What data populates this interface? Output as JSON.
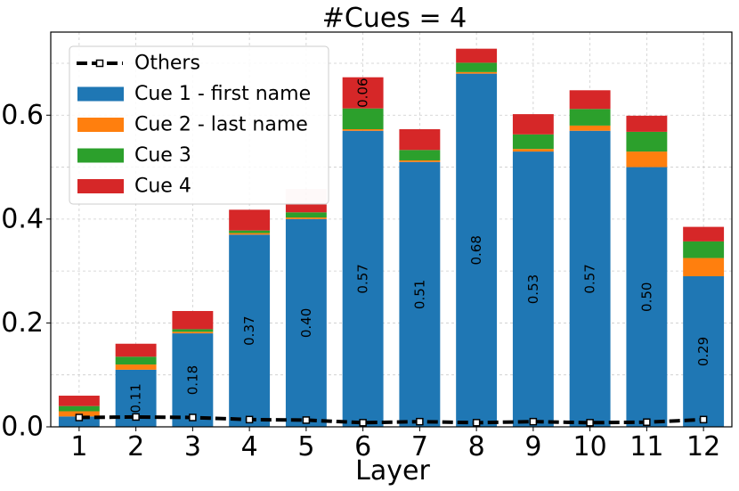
{
  "chart_data": {
    "type": "bar",
    "stacked": true,
    "title": "#Cues = 4",
    "xlabel": "Layer",
    "ylabel": "",
    "ylim": [
      0,
      0.76
    ],
    "yticks": [
      0.0,
      0.2,
      0.4,
      0.6
    ],
    "ytick_labels": [
      "0.0",
      "0.2",
      "0.4",
      "0.6"
    ],
    "categories": [
      "1",
      "2",
      "3",
      "4",
      "5",
      "6",
      "7",
      "8",
      "9",
      "10",
      "11",
      "12"
    ],
    "grid": true,
    "legend_position": "top-left",
    "series": [
      {
        "name": "Cue 1 - first name",
        "color": "#1f77b4",
        "values": [
          0.02,
          0.11,
          0.18,
          0.37,
          0.4,
          0.57,
          0.51,
          0.68,
          0.53,
          0.57,
          0.5,
          0.29
        ],
        "labels": [
          "",
          "0.11",
          "0.18",
          "0.37",
          "0.40",
          "0.57",
          "0.51",
          "0.68",
          "0.53",
          "0.57",
          "0.50",
          "0.29"
        ]
      },
      {
        "name": "Cue 2 - last name",
        "color": "#ff7f0e",
        "values": [
          0.01,
          0.01,
          0.003,
          0.003,
          0.003,
          0.003,
          0.003,
          0.003,
          0.005,
          0.01,
          0.03,
          0.035
        ]
      },
      {
        "name": "Cue 3",
        "color": "#2ca02c",
        "values": [
          0.01,
          0.015,
          0.005,
          0.005,
          0.01,
          0.04,
          0.02,
          0.018,
          0.028,
          0.032,
          0.038,
          0.032
        ]
      },
      {
        "name": "Cue 4",
        "color": "#d62728",
        "values": [
          0.02,
          0.025,
          0.035,
          0.04,
          0.015,
          0.06,
          0.04,
          0.027,
          0.039,
          0.036,
          0.031,
          0.028
        ],
        "labels": [
          "",
          "",
          "",
          "",
          "",
          "0.06",
          "",
          "",
          "",
          "",
          "",
          ""
        ]
      }
    ],
    "others": {
      "name": "Others",
      "color": "#000000",
      "values": [
        0.018,
        0.019,
        0.018,
        0.014,
        0.013,
        0.008,
        0.01,
        0.008,
        0.01,
        0.008,
        0.009,
        0.014
      ]
    }
  }
}
